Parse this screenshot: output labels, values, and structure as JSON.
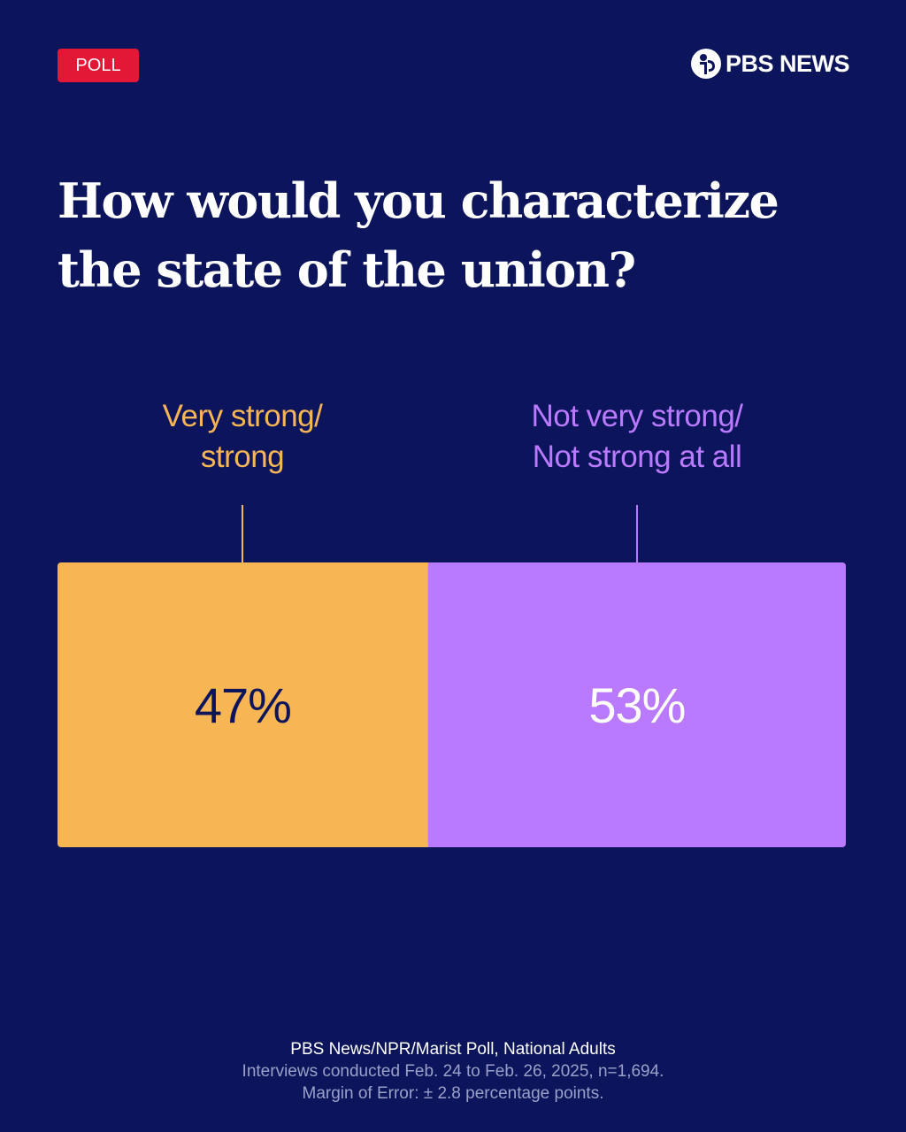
{
  "badge": {
    "label": "POLL",
    "color": "#e31837"
  },
  "brand": {
    "logo_icon": "pbs-logo-icon",
    "name": "PBS NEWS"
  },
  "headline": {
    "line1": "How would you characterize",
    "line2": "the state of the union?"
  },
  "chart_data": {
    "type": "bar",
    "orientation": "horizontal-stacked",
    "title": "How would you characterize the state of the union?",
    "unit": "%",
    "total": 100,
    "categories": [
      {
        "label_lines": [
          "Very strong/",
          "strong"
        ],
        "value": 47,
        "value_label": "47%",
        "color": "#f7b554",
        "value_text_color": "#0c155b"
      },
      {
        "label_lines": [
          "Not very strong/",
          "Not strong at all"
        ],
        "value": 53,
        "value_label": "53%",
        "color": "#b97aff",
        "value_text_color": "#ffffff"
      }
    ]
  },
  "footer": {
    "source": "PBS News/NPR/Marist Poll, National Adults",
    "interviews": "Interviews conducted Feb. 24 to Feb. 26, 2025, n=1,694.",
    "margin": "Margin of Error: ± 2.8 percentage points."
  },
  "colors": {
    "background": "#0c155b",
    "text": "#ffffff",
    "muted": "#9aa0c8"
  }
}
